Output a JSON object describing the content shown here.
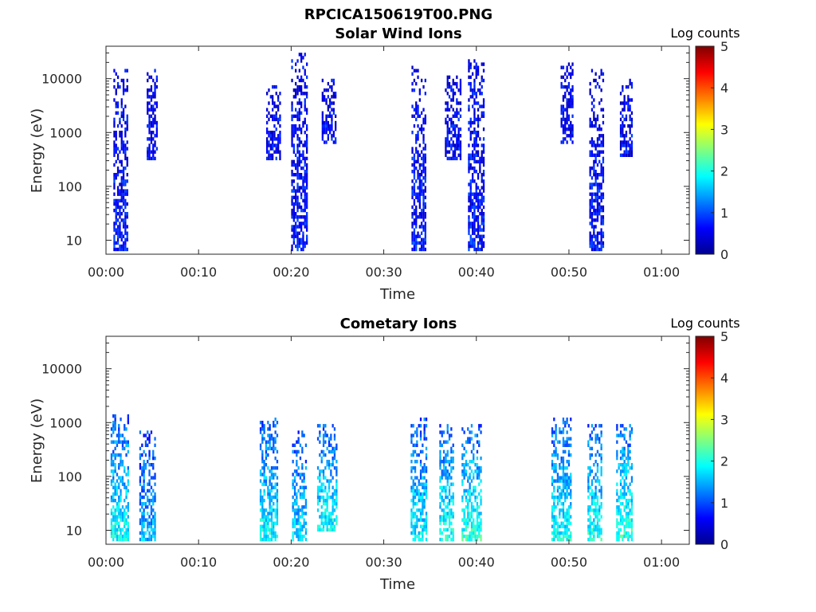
{
  "figure_title": "RPCICA150619T00.PNG",
  "colorbar": {
    "label": "Log counts",
    "ticks": [
      0,
      1,
      2,
      3,
      4,
      5
    ],
    "colormap": "jet"
  },
  "chart_data": [
    {
      "type": "heatmap",
      "title": "Solar Wind Ions",
      "xlabel": "Time",
      "ylabel": "Energy (eV)",
      "x_ticks": [
        "00:00",
        "00:10",
        "00:20",
        "00:30",
        "00:40",
        "00:50",
        "01:00"
      ],
      "x_tick_minutes": [
        0,
        10,
        20,
        30,
        40,
        50,
        60
      ],
      "xlim_minutes": [
        0,
        63
      ],
      "y_scale": "log",
      "y_ticks": [
        "10",
        "100",
        "1000",
        "10000"
      ],
      "y_tick_values": [
        10,
        100,
        1000,
        10000
      ],
      "ylim": [
        5.5,
        40000
      ],
      "clim": [
        0,
        5
      ],
      "bursts": [
        {
          "t": 1.5,
          "w": 1.4,
          "emin": 6,
          "emax": 16000,
          "c": 0.3
        },
        {
          "t": 5.0,
          "w": 1.2,
          "emin": 300,
          "emax": 15000,
          "c": 0.2
        },
        {
          "t": 18.0,
          "w": 1.4,
          "emin": 300,
          "emax": 8000,
          "c": 0.2
        },
        {
          "t": 20.8,
          "w": 1.6,
          "emin": 6,
          "emax": 30000,
          "c": 0.3
        },
        {
          "t": 24.0,
          "w": 1.4,
          "emin": 600,
          "emax": 10000,
          "c": 0.2
        },
        {
          "t": 33.8,
          "w": 1.6,
          "emin": 6,
          "emax": 20000,
          "c": 0.3
        },
        {
          "t": 37.5,
          "w": 1.8,
          "emin": 300,
          "emax": 12000,
          "c": 0.2
        },
        {
          "t": 40.0,
          "w": 1.8,
          "emin": 6,
          "emax": 22000,
          "c": 0.3
        },
        {
          "t": 49.8,
          "w": 1.4,
          "emin": 600,
          "emax": 20000,
          "c": 0.2
        },
        {
          "t": 53.0,
          "w": 1.6,
          "emin": 6,
          "emax": 15000,
          "c": 0.3
        },
        {
          "t": 56.2,
          "w": 1.4,
          "emin": 350,
          "emax": 10000,
          "c": 0.2
        }
      ]
    },
    {
      "type": "heatmap",
      "title": "Cometary Ions",
      "xlabel": "Time",
      "ylabel": "Energy (eV)",
      "x_ticks": [
        "00:00",
        "00:10",
        "00:20",
        "00:30",
        "00:40",
        "00:50",
        "01:00"
      ],
      "x_tick_minutes": [
        0,
        10,
        20,
        30,
        40,
        50,
        60
      ],
      "xlim_minutes": [
        0,
        63
      ],
      "y_scale": "log",
      "y_ticks": [
        "10",
        "100",
        "1000",
        "10000"
      ],
      "y_tick_values": [
        10,
        100,
        1000,
        10000
      ],
      "ylim": [
        5.5,
        40000
      ],
      "clim": [
        0,
        5
      ],
      "bursts": [
        {
          "t": 1.5,
          "w": 2.0,
          "emin": 6,
          "emax": 1500,
          "c": 1.6
        },
        {
          "t": 4.5,
          "w": 1.8,
          "emin": 6,
          "emax": 700,
          "c": 1.2
        },
        {
          "t": 17.5,
          "w": 1.8,
          "emin": 6,
          "emax": 1200,
          "c": 1.6
        },
        {
          "t": 20.8,
          "w": 1.4,
          "emin": 6,
          "emax": 700,
          "c": 1.4
        },
        {
          "t": 23.8,
          "w": 2.0,
          "emin": 10,
          "emax": 900,
          "c": 1.6
        },
        {
          "t": 33.8,
          "w": 1.8,
          "emin": 6,
          "emax": 1200,
          "c": 1.5
        },
        {
          "t": 36.8,
          "w": 1.6,
          "emin": 6,
          "emax": 1000,
          "c": 1.7
        },
        {
          "t": 39.5,
          "w": 2.2,
          "emin": 6,
          "emax": 900,
          "c": 1.8
        },
        {
          "t": 49.2,
          "w": 2.2,
          "emin": 6,
          "emax": 1300,
          "c": 1.6
        },
        {
          "t": 52.8,
          "w": 1.6,
          "emin": 6,
          "emax": 1000,
          "c": 1.7
        },
        {
          "t": 56.0,
          "w": 1.8,
          "emin": 6,
          "emax": 900,
          "c": 1.8
        }
      ]
    }
  ]
}
